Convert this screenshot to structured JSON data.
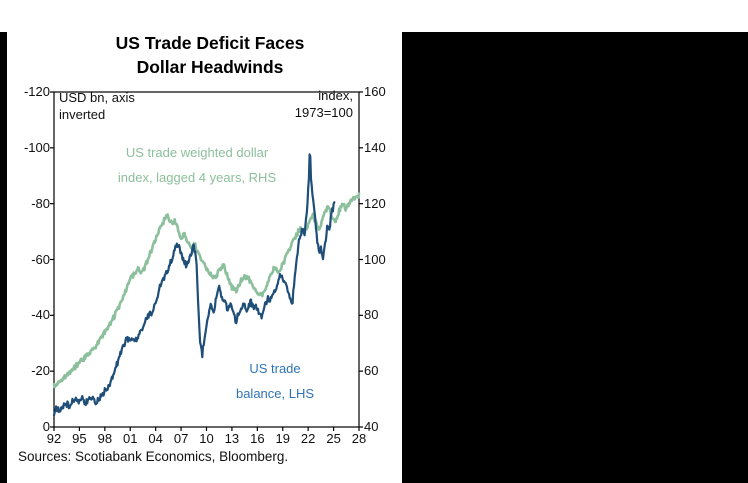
{
  "title": {
    "line1": "US Trade Deficit Faces",
    "line2": "Dollar Headwinds"
  },
  "annotations": {
    "left_axis_note_line1": "USD bn, axis",
    "left_axis_note_line2": "inverted",
    "right_axis_note_line1": "index,",
    "right_axis_note_line2": "1973=100",
    "series_green_label_line1": "US trade weighted dollar",
    "series_green_label_line2": "index, lagged 4 years, RHS",
    "series_blue_label_line1": "US trade",
    "series_blue_label_line2": "balance, LHS"
  },
  "source": "Sources: Scotiabank Economics, Bloomberg.",
  "colors": {
    "series_green": "#8cbf9b",
    "series_blue": "#1f4e79",
    "blue_label": "#2e74b5",
    "green_label": "#8cbf9b",
    "axis": "#000000",
    "panel_bg": "#ffffff",
    "viewer_bg": "#000000"
  },
  "chart_data": {
    "type": "line",
    "title": "US Trade Deficit Faces Dollar Headwinds",
    "xlabel": "",
    "x_range_years": [
      1992,
      2028
    ],
    "x_ticks": [
      "92",
      "95",
      "98",
      "01",
      "04",
      "07",
      "10",
      "13",
      "16",
      "19",
      "22",
      "25",
      "28"
    ],
    "grid": false,
    "legend_position": "inline-annotations",
    "left_axis": {
      "label": "USD bn, axis inverted",
      "inverted": true,
      "ticks": [
        -120,
        -100,
        -80,
        -60,
        -40,
        -20,
        0
      ],
      "range": [
        -120,
        0
      ]
    },
    "right_axis": {
      "label": "index, 1973=100",
      "ticks": [
        160,
        140,
        120,
        100,
        80,
        60,
        40
      ],
      "range": [
        40,
        160
      ]
    },
    "series": [
      {
        "name": "US trade weighted dollar index, lagged 4 years, RHS",
        "axis": "right",
        "color": "#8cbf9b",
        "points": [
          [
            1992,
            55
          ],
          [
            1992.5,
            56
          ],
          [
            1993,
            57
          ],
          [
            1993.5,
            58.5
          ],
          [
            1994,
            60
          ],
          [
            1994.5,
            61.5
          ],
          [
            1995,
            63
          ],
          [
            1995.5,
            64.5
          ],
          [
            1996,
            66
          ],
          [
            1996.5,
            67.5
          ],
          [
            1997,
            69
          ],
          [
            1997.5,
            71.5
          ],
          [
            1998,
            74
          ],
          [
            1998.5,
            76.5
          ],
          [
            1999,
            79
          ],
          [
            1999.5,
            82
          ],
          [
            2000,
            85
          ],
          [
            2000.5,
            89
          ],
          [
            2001,
            93
          ],
          [
            2001.5,
            95
          ],
          [
            2002,
            97
          ],
          [
            2002.4,
            95
          ],
          [
            2002.8,
            98
          ],
          [
            2003.2,
            101
          ],
          [
            2003.6,
            104
          ],
          [
            2004,
            107
          ],
          [
            2004.5,
            111
          ],
          [
            2005,
            114
          ],
          [
            2005.3,
            116
          ],
          [
            2005.8,
            113
          ],
          [
            2006.2,
            114
          ],
          [
            2006.6,
            111
          ],
          [
            2007,
            108
          ],
          [
            2007.4,
            109
          ],
          [
            2007.8,
            106
          ],
          [
            2008.2,
            104
          ],
          [
            2008.6,
            106
          ],
          [
            2009,
            102
          ],
          [
            2009.5,
            99
          ],
          [
            2010,
            97
          ],
          [
            2010.5,
            95
          ],
          [
            2011,
            93
          ],
          [
            2011.5,
            96
          ],
          [
            2012,
            98
          ],
          [
            2012.5,
            94
          ],
          [
            2013,
            90
          ],
          [
            2013.5,
            89
          ],
          [
            2014,
            92
          ],
          [
            2014.5,
            94
          ],
          [
            2015,
            93
          ],
          [
            2015.5,
            90
          ],
          [
            2016,
            88
          ],
          [
            2016.5,
            87
          ],
          [
            2017,
            90
          ],
          [
            2017.5,
            94
          ],
          [
            2018,
            97
          ],
          [
            2018.5,
            96
          ],
          [
            2019,
            98
          ],
          [
            2019.5,
            102
          ],
          [
            2020,
            105
          ],
          [
            2020.5,
            108
          ],
          [
            2021,
            111
          ],
          [
            2021.5,
            109
          ],
          [
            2022,
            112
          ],
          [
            2022.5,
            116
          ],
          [
            2023,
            113
          ],
          [
            2023.3,
            110
          ],
          [
            2023.7,
            114
          ],
          [
            2024,
            117
          ],
          [
            2024.4,
            119
          ],
          [
            2024.8,
            116
          ],
          [
            2025.2,
            113
          ],
          [
            2025.6,
            117
          ],
          [
            2026,
            120
          ],
          [
            2026.5,
            118
          ],
          [
            2027,
            121
          ],
          [
            2027.5,
            122
          ],
          [
            2028,
            123
          ]
        ]
      },
      {
        "name": "US trade balance, LHS",
        "axis": "left",
        "color": "#1f4e79",
        "points": [
          [
            1992,
            -5
          ],
          [
            1992.3,
            -7
          ],
          [
            1992.7,
            -5.5
          ],
          [
            1993,
            -7
          ],
          [
            1993.4,
            -8.5
          ],
          [
            1993.8,
            -7.5
          ],
          [
            1994.2,
            -9.5
          ],
          [
            1994.6,
            -10.5
          ],
          [
            1995,
            -9
          ],
          [
            1995.3,
            -11
          ],
          [
            1995.7,
            -8.5
          ],
          [
            1996,
            -9.5
          ],
          [
            1996.4,
            -10.5
          ],
          [
            1996.8,
            -9
          ],
          [
            1997.2,
            -9.5
          ],
          [
            1997.6,
            -11
          ],
          [
            1998,
            -13
          ],
          [
            1998.5,
            -15
          ],
          [
            1999,
            -19
          ],
          [
            1999.5,
            -23
          ],
          [
            2000,
            -28
          ],
          [
            2000.5,
            -31
          ],
          [
            2001,
            -32
          ],
          [
            2001.5,
            -30
          ],
          [
            2002,
            -33
          ],
          [
            2002.5,
            -36
          ],
          [
            2003,
            -39
          ],
          [
            2003.5,
            -41
          ],
          [
            2004,
            -45
          ],
          [
            2004.5,
            -50
          ],
          [
            2005,
            -53
          ],
          [
            2005.5,
            -57
          ],
          [
            2006,
            -61
          ],
          [
            2006.5,
            -66
          ],
          [
            2006.8,
            -64
          ],
          [
            2007.2,
            -60
          ],
          [
            2007.6,
            -58
          ],
          [
            2008,
            -60
          ],
          [
            2008.5,
            -65
          ],
          [
            2008.8,
            -60
          ],
          [
            2009.2,
            -32
          ],
          [
            2009.5,
            -26
          ],
          [
            2009.8,
            -33
          ],
          [
            2010.2,
            -40
          ],
          [
            2010.5,
            -44
          ],
          [
            2010.8,
            -41
          ],
          [
            2011.2,
            -47
          ],
          [
            2011.5,
            -50
          ],
          [
            2011.8,
            -46
          ],
          [
            2012.2,
            -45
          ],
          [
            2012.5,
            -42
          ],
          [
            2012.8,
            -44
          ],
          [
            2013.2,
            -40
          ],
          [
            2013.5,
            -38
          ],
          [
            2013.8,
            -41
          ],
          [
            2014.2,
            -43
          ],
          [
            2014.5,
            -44
          ],
          [
            2014.8,
            -42
          ],
          [
            2015.2,
            -45
          ],
          [
            2015.5,
            -43
          ],
          [
            2015.8,
            -44
          ],
          [
            2016.2,
            -41
          ],
          [
            2016.5,
            -40
          ],
          [
            2016.8,
            -43
          ],
          [
            2017.2,
            -46
          ],
          [
            2017.5,
            -45
          ],
          [
            2017.8,
            -48
          ],
          [
            2018.2,
            -50
          ],
          [
            2018.5,
            -53
          ],
          [
            2018.8,
            -55
          ],
          [
            2019.2,
            -51
          ],
          [
            2019.5,
            -50
          ],
          [
            2019.8,
            -47
          ],
          [
            2020.1,
            -43
          ],
          [
            2020.4,
            -53
          ],
          [
            2020.7,
            -62
          ],
          [
            2021,
            -68
          ],
          [
            2021.3,
            -71
          ],
          [
            2021.6,
            -69
          ],
          [
            2021.9,
            -80
          ],
          [
            2022.1,
            -90
          ],
          [
            2022.2,
            -102
          ],
          [
            2022.35,
            -87
          ],
          [
            2022.5,
            -84
          ],
          [
            2022.7,
            -78
          ],
          [
            2022.9,
            -72
          ],
          [
            2023.1,
            -66
          ],
          [
            2023.3,
            -63
          ],
          [
            2023.5,
            -64
          ],
          [
            2023.7,
            -60
          ],
          [
            2023.9,
            -64
          ],
          [
            2024.1,
            -68
          ],
          [
            2024.3,
            -73
          ],
          [
            2024.5,
            -70
          ],
          [
            2024.7,
            -76
          ],
          [
            2024.9,
            -78
          ],
          [
            2025.1,
            -80
          ]
        ]
      }
    ]
  }
}
